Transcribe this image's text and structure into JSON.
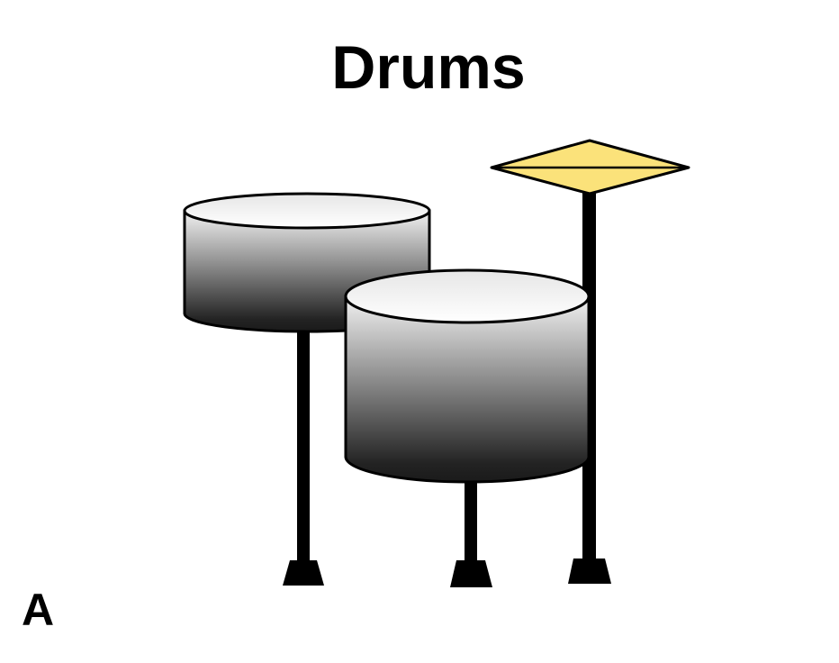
{
  "title": "Drums",
  "panel_label": "A",
  "colors": {
    "cymbal_fill": "#fbe27a",
    "drum_top_light": "#f7f7f7",
    "drum_body_dark": "#1e1e1e",
    "outline": "#000000"
  },
  "icons": [
    "left-tom-drum",
    "floor-tom-drum",
    "crash-cymbal",
    "drum-stand"
  ]
}
